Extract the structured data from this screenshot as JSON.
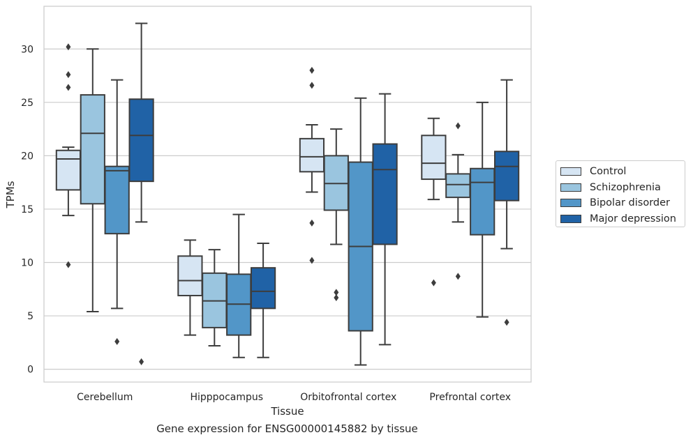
{
  "chart_data": {
    "type": "box",
    "title": "",
    "caption": "Gene expression for ENSG00000145882 by tissue",
    "xlabel": "Tissue",
    "ylabel": "TPMs",
    "ylim": [
      -1.2,
      34.0
    ],
    "yticks": [
      0,
      5,
      10,
      15,
      20,
      25,
      30
    ],
    "grid": true,
    "legend_position": "right",
    "categories": [
      "Cerebellum",
      "Hipppocampus",
      "Orbitofrontal cortex",
      "Prefrontal cortex"
    ],
    "series": [
      {
        "name": "Control",
        "color": "#d6e5f3",
        "boxes": [
          {
            "whislo": 14.4,
            "q1": 16.8,
            "med": 19.7,
            "q3": 20.5,
            "whishi": 20.8,
            "fliers": [
              30.2,
              27.6,
              26.4,
              9.8
            ]
          },
          {
            "whislo": 3.2,
            "q1": 6.9,
            "med": 8.3,
            "q3": 10.6,
            "whishi": 12.1,
            "fliers": []
          },
          {
            "whislo": 16.6,
            "q1": 18.5,
            "med": 19.9,
            "q3": 21.6,
            "whishi": 22.9,
            "fliers": [
              28.0,
              26.6,
              13.7,
              10.2
            ]
          },
          {
            "whislo": 15.9,
            "q1": 17.8,
            "med": 19.3,
            "q3": 21.9,
            "whishi": 23.5,
            "fliers": [
              8.1
            ]
          }
        ]
      },
      {
        "name": "Schizophrenia",
        "color": "#9ac5df",
        "boxes": [
          {
            "whislo": 5.4,
            "q1": 15.5,
            "med": 22.1,
            "q3": 25.7,
            "whishi": 30.0,
            "fliers": []
          },
          {
            "whislo": 2.2,
            "q1": 3.9,
            "med": 6.4,
            "q3": 9.0,
            "whishi": 11.2,
            "fliers": []
          },
          {
            "whislo": 11.7,
            "q1": 14.9,
            "med": 17.4,
            "q3": 20.0,
            "whishi": 22.5,
            "fliers": [
              7.2,
              6.7
            ]
          },
          {
            "whislo": 13.8,
            "q1": 16.1,
            "med": 17.3,
            "q3": 18.3,
            "whishi": 20.1,
            "fliers": [
              22.8,
              8.7
            ]
          }
        ]
      },
      {
        "name": "Bipolar disorder",
        "color": "#5296c8",
        "boxes": [
          {
            "whislo": 5.7,
            "q1": 12.7,
            "med": 18.6,
            "q3": 19.0,
            "whishi": 27.1,
            "fliers": [
              2.6
            ]
          },
          {
            "whislo": 1.1,
            "q1": 3.2,
            "med": 6.1,
            "q3": 8.9,
            "whishi": 14.5,
            "fliers": []
          },
          {
            "whislo": 0.4,
            "q1": 3.6,
            "med": 11.5,
            "q3": 19.4,
            "whishi": 25.4,
            "fliers": []
          },
          {
            "whislo": 4.9,
            "q1": 12.6,
            "med": 17.5,
            "q3": 18.8,
            "whishi": 25.0,
            "fliers": []
          }
        ]
      },
      {
        "name": "Major depression",
        "color": "#2062a6",
        "boxes": [
          {
            "whislo": 13.8,
            "q1": 17.6,
            "med": 21.9,
            "q3": 25.3,
            "whishi": 32.4,
            "fliers": [
              0.7
            ]
          },
          {
            "whislo": 1.1,
            "q1": 5.7,
            "med": 7.3,
            "q3": 9.5,
            "whishi": 11.8,
            "fliers": []
          },
          {
            "whislo": 2.3,
            "q1": 11.7,
            "med": 18.7,
            "q3": 21.1,
            "whishi": 25.8,
            "fliers": []
          },
          {
            "whislo": 11.3,
            "q1": 15.8,
            "med": 19.0,
            "q3": 20.4,
            "whishi": 27.1,
            "fliers": [
              4.4
            ]
          }
        ]
      }
    ]
  }
}
